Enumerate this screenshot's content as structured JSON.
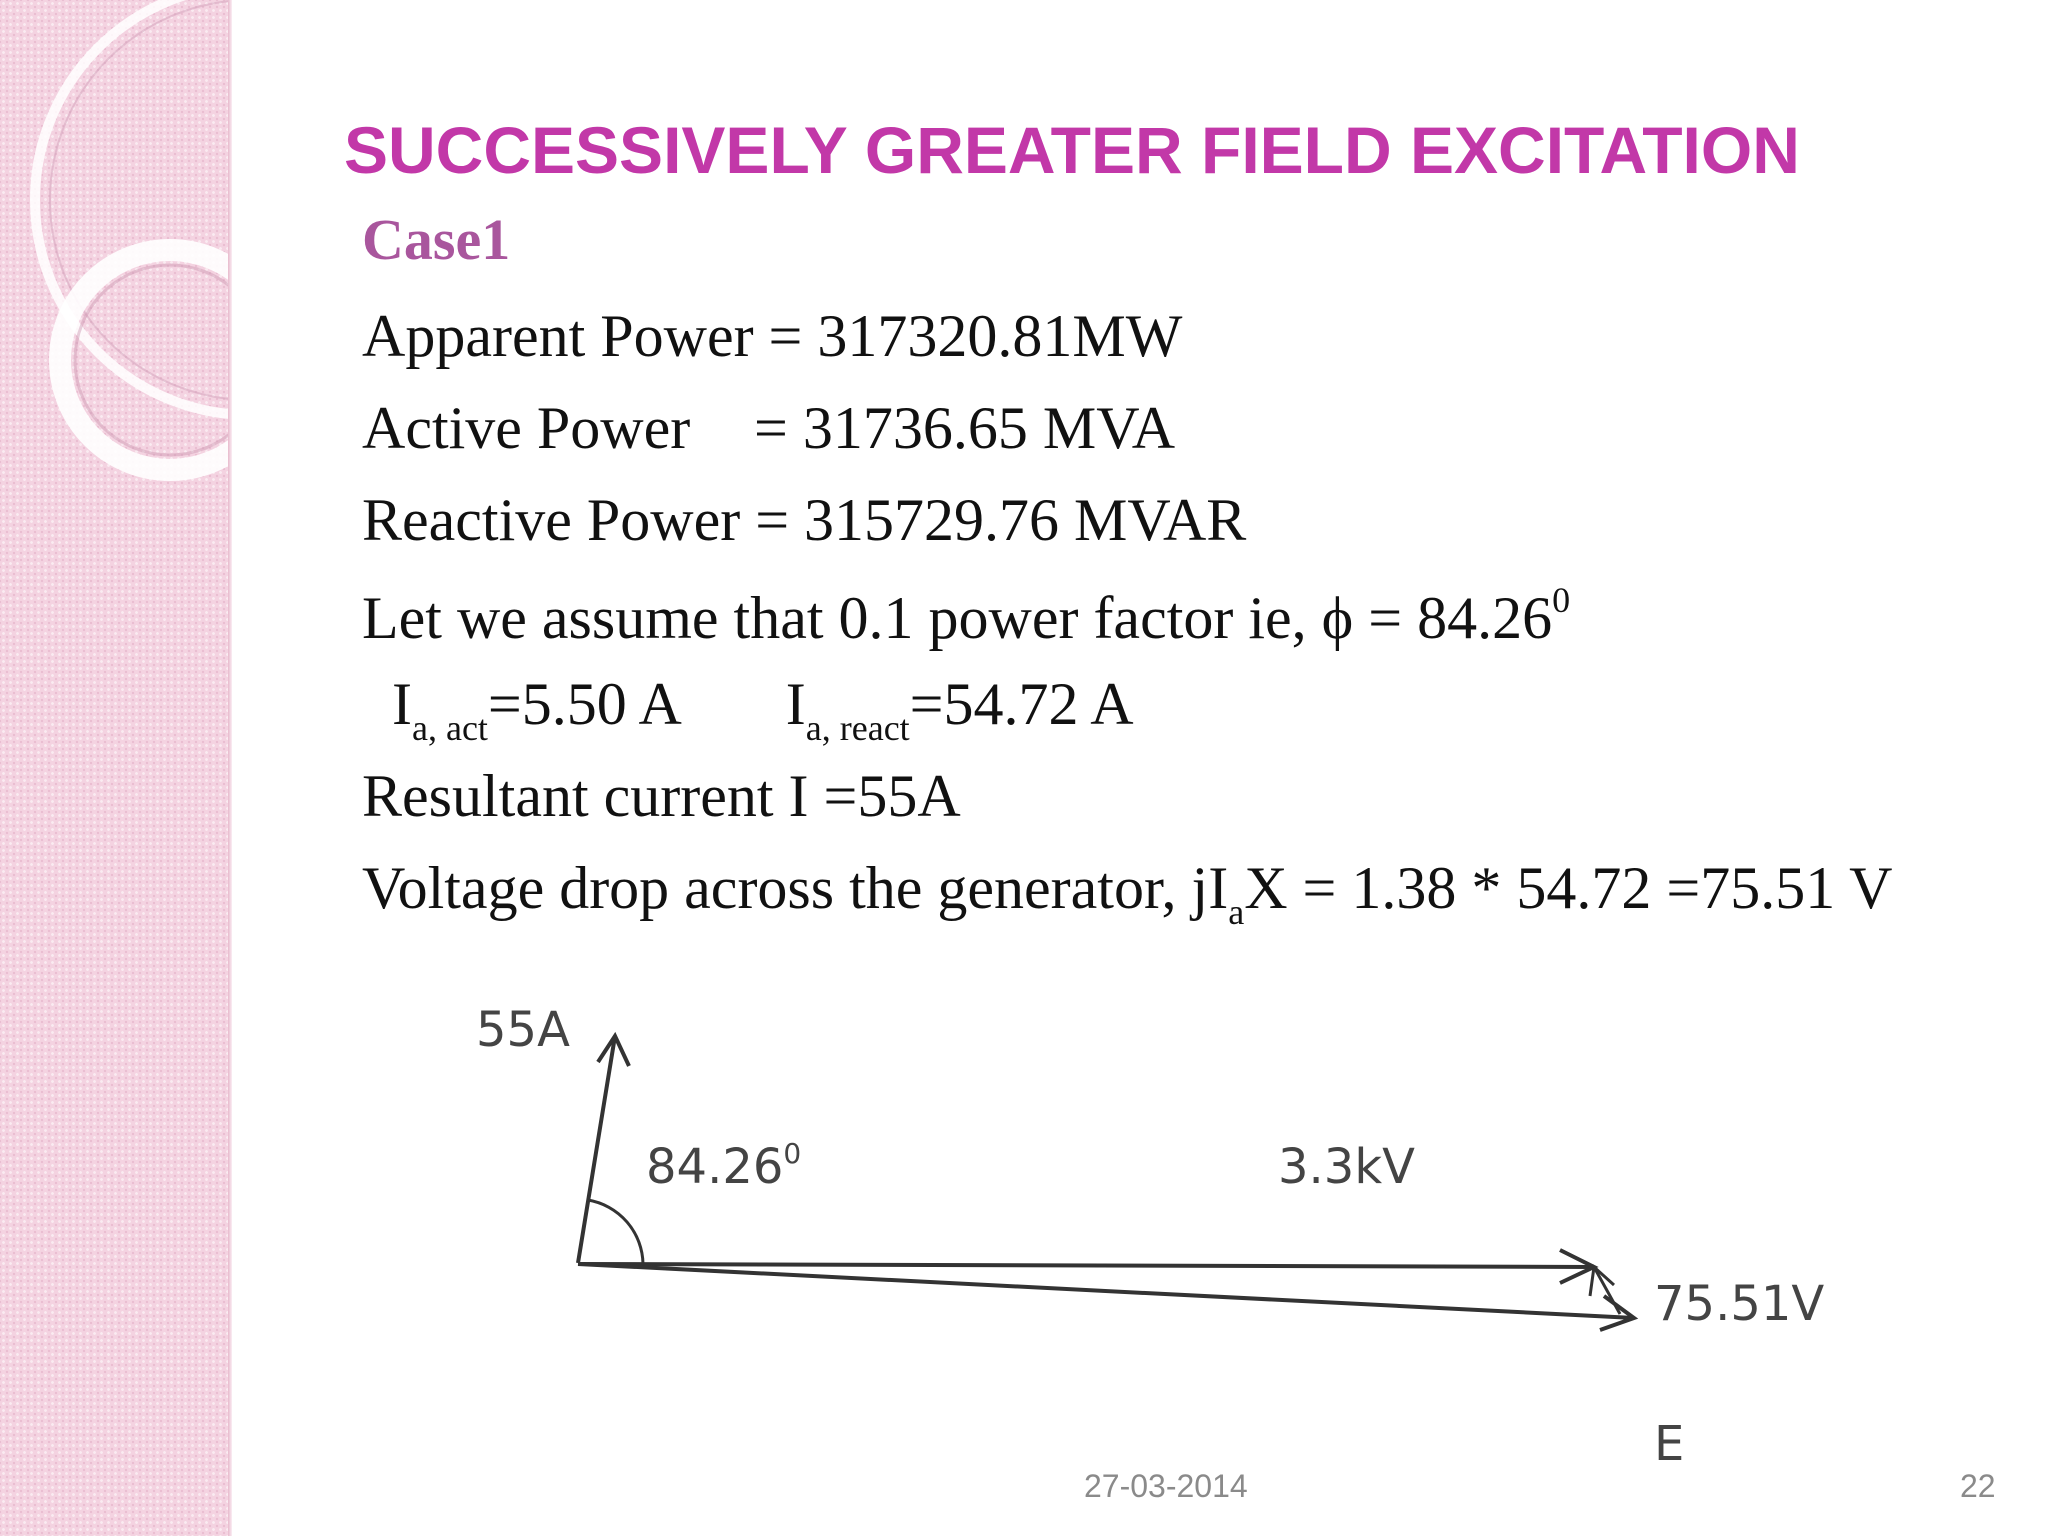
{
  "slide": {
    "title": "SUCCESSIVELY GREATER FIELD EXCITATION",
    "case_label": "Case1",
    "apparent_power": "Apparent Power = 317320.81MW",
    "active_power_label": "Active Power",
    "active_power_value": "= 31736.65 MVA",
    "reactive_power": "Reactive Power = 315729.76 MVAR",
    "assumption_text": "Let we assume that 0.1 power factor ie, ϕ = 84.26",
    "assumption_sup": "0",
    "ia_symbol": "I",
    "ia_act_sub": "a, act",
    "ia_act_value": "=5.50 A",
    "ia_react_sub": "a, react",
    "ia_react_value": "=54.72 A",
    "resultant": "Resultant current I =55A",
    "vdrop_prefix": "Voltage drop across the generator, jI",
    "vdrop_sub": "a",
    "vdrop_suffix": "X = 1.38 * 54.72 =75.51 V"
  },
  "diagram": {
    "current_label": "55A",
    "angle_label": "84.26",
    "angle_sup": "0",
    "voltage_label": "3.3kV",
    "drop_label": "75.51V",
    "emf_label": "E"
  },
  "footer": {
    "date": "27-03-2014",
    "page_number": "22"
  }
}
